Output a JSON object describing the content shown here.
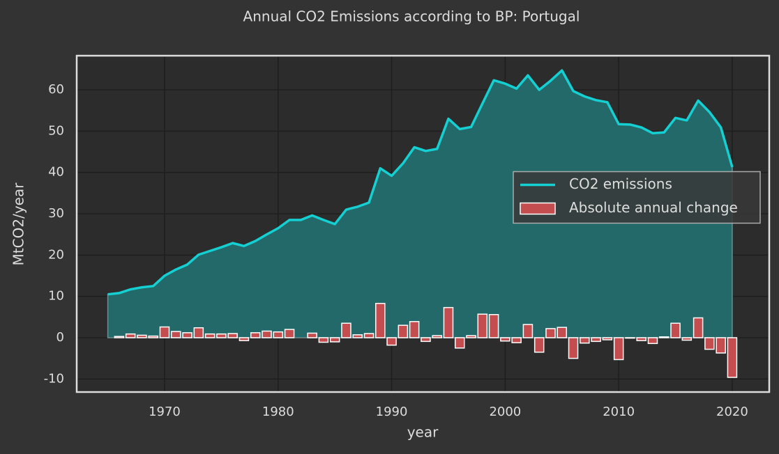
{
  "chart_data": {
    "type": "line_bar",
    "title": "Annual CO2 Emissions according to BP: Portugal",
    "xlabel": "year",
    "ylabel": "MtCO2/year",
    "x": [
      1965,
      1966,
      1967,
      1968,
      1969,
      1970,
      1971,
      1972,
      1973,
      1974,
      1975,
      1976,
      1977,
      1978,
      1979,
      1980,
      1981,
      1982,
      1983,
      1984,
      1985,
      1986,
      1987,
      1988,
      1989,
      1990,
      1991,
      1992,
      1993,
      1994,
      1995,
      1996,
      1997,
      1998,
      1999,
      2000,
      2001,
      2002,
      2003,
      2004,
      2005,
      2006,
      2007,
      2008,
      2009,
      2010,
      2011,
      2012,
      2013,
      2014,
      2015,
      2016,
      2017,
      2018,
      2019,
      2020
    ],
    "series": [
      {
        "name": "CO2 emissions",
        "kind": "line",
        "color": "#15d0d2",
        "fill": "#246969",
        "values": [
          10.5,
          10.8,
          11.7,
          12.2,
          12.5,
          15.0,
          16.5,
          17.7,
          20.1,
          21.0,
          21.9,
          22.9,
          22.2,
          23.4,
          25.0,
          26.5,
          28.5,
          28.5,
          29.6,
          28.5,
          27.5,
          31.0,
          31.7,
          32.7,
          41.0,
          39.2,
          42.2,
          46.1,
          45.2,
          45.7,
          53.0,
          50.5,
          51.0,
          56.7,
          62.3,
          61.5,
          60.3,
          63.5,
          60.0,
          62.2,
          64.7,
          59.7,
          58.4,
          57.5,
          57.0,
          51.7,
          51.6,
          50.9,
          49.5,
          49.7,
          53.2,
          52.6,
          57.4,
          54.6,
          50.9,
          41.3
        ]
      },
      {
        "name": "Absolute annual change",
        "kind": "bar",
        "color": "#c44e4f",
        "values": [
          null,
          0.3,
          0.9,
          0.6,
          0.4,
          2.6,
          1.5,
          1.2,
          2.4,
          0.9,
          0.9,
          1.0,
          -0.7,
          1.2,
          1.6,
          1.4,
          2.0,
          0.0,
          1.1,
          -1.1,
          -1.0,
          3.5,
          0.7,
          1.0,
          8.3,
          -1.8,
          3.0,
          3.9,
          -0.9,
          0.5,
          7.3,
          -2.5,
          0.5,
          5.7,
          5.6,
          -0.8,
          -1.2,
          3.2,
          -3.5,
          2.2,
          2.5,
          -5.0,
          -1.3,
          -0.9,
          -0.5,
          -5.3,
          -0.1,
          -0.7,
          -1.4,
          0.2,
          3.5,
          -0.6,
          4.8,
          -2.8,
          -3.7,
          -9.6
        ]
      }
    ],
    "xlim": [
      1962.26,
      2023.26
    ],
    "ylim": [
      -13.15,
      68.26
    ],
    "xticks": [
      1970,
      1980,
      1990,
      2000,
      2010,
      2020
    ],
    "yticks": [
      -10,
      0,
      10,
      20,
      30,
      40,
      50,
      60
    ],
    "grid": true,
    "legend": "center right"
  }
}
